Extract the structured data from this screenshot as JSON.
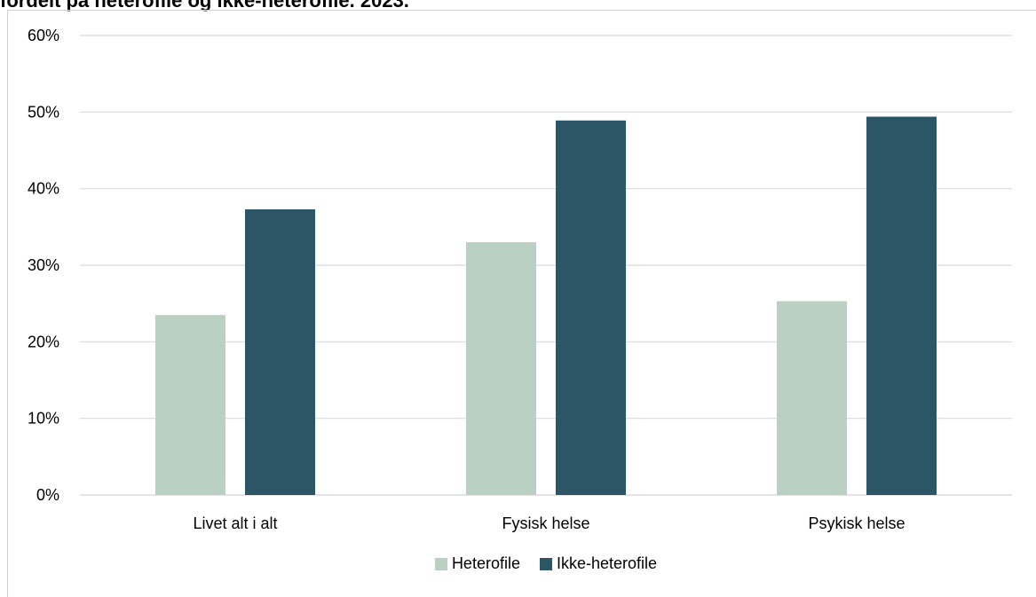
{
  "chart_data": {
    "type": "bar",
    "title": "fordelt på heterofile og ikke-heterofile. 2023.",
    "categories": [
      "Livet alt i alt",
      "Fysisk helse",
      "Psykisk helse"
    ],
    "series": [
      {
        "name": "Heterofile",
        "values": [
          23.5,
          33.0,
          25.3
        ],
        "color": "#b9d0c3"
      },
      {
        "name": "Ikke-heterofile",
        "values": [
          37.3,
          48.9,
          49.4
        ],
        "color": "#2c5566"
      }
    ],
    "ylim": [
      0,
      60
    ],
    "yticks": [
      "0%",
      "10%",
      "20%",
      "30%",
      "40%",
      "50%",
      "60%"
    ],
    "ytick_values": [
      0,
      10,
      20,
      30,
      40,
      50,
      60
    ],
    "grid": true,
    "gridline_color": "#d9d9d9",
    "legend_position": "bottom-center"
  }
}
